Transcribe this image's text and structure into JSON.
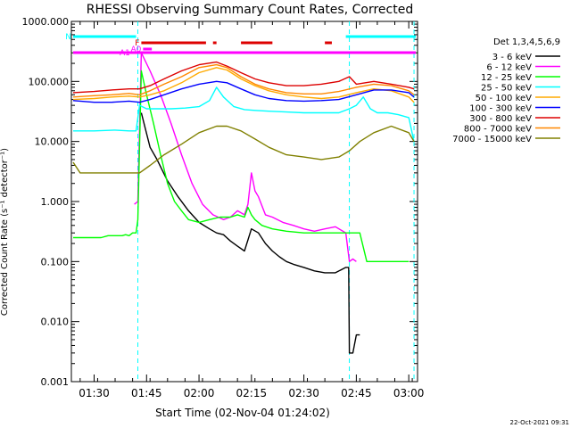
{
  "chart_data": {
    "type": "line",
    "title": "RHESSI Observing Summary Count Rates, Corrected",
    "ylabel": "Corrected Count Rate (s⁻¹ detector⁻¹)",
    "xlabel": "Start Time (02-Nov-04 01:24:02)",
    "footer_date": "22-Oct-2021 09:31",
    "y_scale": "log",
    "ylim": [
      0.001,
      1000
    ],
    "xlim_min": [
      84,
      182
    ],
    "y_ticks": [
      "1000.000",
      "100.000",
      "10.000",
      "1.000",
      "0.100",
      "0.010",
      "0.001"
    ],
    "x_ticks": [
      {
        "label": "01:30",
        "min": 90
      },
      {
        "label": "01:45",
        "min": 105
      },
      {
        "label": "02:00",
        "min": 120
      },
      {
        "label": "02:15",
        "min": 135
      },
      {
        "label": "02:30",
        "min": 150
      },
      {
        "label": "02:45",
        "min": 165
      },
      {
        "label": "03:00",
        "min": 180
      }
    ],
    "legend": {
      "title": "Det 1,3,4,5,6,9",
      "entries": [
        {
          "label": "3 - 6 keV",
          "color": "#000000"
        },
        {
          "label": "6 - 12 keV",
          "color": "#ff00ff"
        },
        {
          "label": "12 - 25 keV",
          "color": "#00ff00"
        },
        {
          "label": "25 - 50 keV",
          "color": "#00ffff"
        },
        {
          "label": "50 - 100 keV",
          "color": "#ffaa00"
        },
        {
          "label": "100 - 300 keV",
          "color": "#0000ff"
        },
        {
          "label": "300 - 800 keV",
          "color": "#dd0000"
        },
        {
          "label": "800 - 7000 keV",
          "color": "#ff8800"
        },
        {
          "label": "7000 - 15000 keV",
          "color": "#808000"
        }
      ]
    },
    "flags": [
      {
        "label": "N",
        "color": "#00ffff",
        "segments": [
          [
            84,
            102
          ],
          [
            162,
            182
          ]
        ]
      },
      {
        "label": "F",
        "color": "#dd0000",
        "segments": [
          [
            103.5,
            122
          ],
          [
            124,
            125
          ],
          [
            132,
            141
          ],
          [
            156,
            158
          ]
        ]
      },
      {
        "label": "A0",
        "color": "#ff00ff",
        "segments": [
          [
            104,
            106.5
          ]
        ]
      },
      {
        "label": "A1",
        "color": "#ff00ff",
        "segments": [
          [
            84,
            182
          ]
        ]
      }
    ],
    "vlines_min": [
      102.5,
      163,
      181.5
    ],
    "series": [
      {
        "label": "3 - 6 keV",
        "color": "#000000",
        "x": [
          84,
          101.5,
          102.5,
          103.5,
          106,
          108,
          111,
          114,
          117,
          120,
          123,
          125,
          127,
          129,
          131,
          133,
          135,
          137,
          139,
          141,
          143,
          145,
          147,
          150,
          153,
          156,
          159,
          162,
          162.8,
          163,
          164,
          165,
          166
        ],
        "y": [
          null,
          null,
          null,
          30,
          8,
          5,
          2.2,
          1.2,
          0.7,
          0.45,
          0.35,
          0.3,
          0.28,
          0.22,
          0.18,
          0.15,
          0.35,
          0.3,
          0.2,
          0.15,
          0.12,
          0.1,
          0.09,
          0.08,
          0.07,
          0.065,
          0.065,
          0.08,
          0.08,
          0.003,
          0.003,
          0.006,
          0.006
        ]
      },
      {
        "label": "6 - 12 keV",
        "color": "#ff00ff",
        "x": [
          84,
          101,
          101.5,
          102.5,
          103.5,
          106,
          109,
          112,
          115,
          118,
          121,
          124,
          127,
          129,
          131,
          133,
          134,
          135,
          136,
          137,
          139,
          141,
          144,
          147,
          150,
          153,
          156,
          159,
          162,
          163,
          164,
          165
        ],
        "y": [
          null,
          null,
          0.9,
          1,
          300,
          150,
          60,
          20,
          6,
          2,
          0.9,
          0.6,
          0.5,
          0.55,
          0.7,
          0.6,
          0.9,
          3,
          1.5,
          1.2,
          0.6,
          0.55,
          0.45,
          0.4,
          0.35,
          0.32,
          0.35,
          0.38,
          0.3,
          0.1,
          0.11,
          0.1
        ]
      },
      {
        "label": "12 - 25 keV",
        "color": "#00ff00",
        "x": [
          84,
          88,
          90,
          92,
          94,
          96,
          98,
          99,
          100,
          101,
          102,
          102.5,
          103.5,
          105,
          107,
          109,
          111,
          113,
          115,
          117,
          120,
          123,
          126,
          129,
          131,
          133,
          134,
          135,
          136,
          138,
          141,
          145,
          150,
          155,
          160,
          164,
          166,
          168,
          175,
          180
        ],
        "y": [
          0.25,
          0.25,
          0.25,
          0.25,
          0.27,
          0.27,
          0.27,
          0.28,
          0.27,
          0.3,
          0.3,
          0.5,
          150,
          60,
          20,
          6,
          2,
          1,
          0.7,
          0.5,
          0.45,
          0.5,
          0.55,
          0.55,
          0.6,
          0.55,
          0.8,
          0.6,
          0.5,
          0.4,
          0.35,
          0.32,
          0.3,
          0.3,
          0.3,
          0.3,
          0.3,
          0.1,
          0.1,
          0.1
        ]
      },
      {
        "label": "25 - 50 keV",
        "color": "#00ffff",
        "x": [
          84,
          90,
          96,
          100,
          102,
          103,
          105,
          108,
          112,
          116,
          120,
          123,
          125,
          127,
          130,
          133,
          136,
          140,
          145,
          150,
          155,
          160,
          163,
          165,
          167,
          169,
          171,
          174,
          177,
          180,
          181.5
        ],
        "y": [
          15,
          15,
          15.5,
          15,
          15,
          40,
          35,
          35,
          35,
          36,
          38,
          48,
          80,
          55,
          38,
          34,
          33,
          32,
          31,
          30,
          30,
          30,
          35,
          40,
          55,
          35,
          30,
          30,
          28,
          25,
          10
        ]
      },
      {
        "label": "50 - 100 keV",
        "color": "#ffaa00",
        "x": [
          84,
          90,
          95,
          100,
          103,
          106,
          110,
          115,
          120,
          125,
          128,
          132,
          136,
          140,
          145,
          150,
          155,
          160,
          165,
          170,
          175,
          180,
          181.5
        ],
        "y": [
          50,
          52,
          55,
          57,
          55,
          60,
          70,
          95,
          140,
          170,
          155,
          110,
          85,
          70,
          60,
          55,
          52,
          55,
          65,
          75,
          70,
          55,
          45
        ]
      },
      {
        "label": "100 - 300 keV",
        "color": "#0000ff",
        "x": [
          84,
          90,
          95,
          100,
          103,
          106,
          110,
          115,
          120,
          125,
          128,
          132,
          136,
          140,
          145,
          150,
          155,
          160,
          165,
          170,
          175,
          180,
          181.5
        ],
        "y": [
          48,
          45,
          45,
          47,
          45,
          50,
          60,
          75,
          90,
          100,
          95,
          75,
          60,
          52,
          48,
          47,
          48,
          50,
          60,
          72,
          72,
          65,
          55
        ]
      },
      {
        "label": "300 - 800 keV",
        "color": "#dd0000",
        "x": [
          84,
          90,
          95,
          100,
          103,
          106,
          110,
          115,
          120,
          125,
          128,
          132,
          136,
          140,
          145,
          150,
          155,
          160,
          163,
          165,
          170,
          175,
          180,
          181.5
        ],
        "y": [
          65,
          68,
          72,
          75,
          75,
          85,
          110,
          150,
          190,
          210,
          180,
          140,
          110,
          95,
          85,
          85,
          90,
          100,
          120,
          90,
          100,
          90,
          80,
          75
        ]
      },
      {
        "label": "800 - 7000 keV",
        "color": "#ff8800",
        "x": [
          84,
          90,
          95,
          100,
          103,
          106,
          110,
          115,
          120,
          125,
          128,
          132,
          136,
          140,
          145,
          150,
          155,
          160,
          165,
          170,
          175,
          180,
          181.5
        ],
        "y": [
          55,
          58,
          60,
          63,
          60,
          70,
          90,
          120,
          170,
          190,
          170,
          120,
          90,
          75,
          65,
          62,
          62,
          68,
          80,
          90,
          85,
          70,
          60
        ]
      },
      {
        "label": "7000 - 15000 keV",
        "color": "#808000",
        "x": [
          84,
          86,
          90,
          95,
          100,
          103,
          106,
          110,
          115,
          120,
          125,
          128,
          132,
          136,
          140,
          145,
          150,
          155,
          160,
          163,
          166,
          170,
          175,
          180,
          181.5
        ],
        "y": [
          4.5,
          3,
          3,
          3,
          3,
          3,
          4,
          6,
          9,
          14,
          18,
          18,
          15,
          11,
          8,
          6,
          5.5,
          5,
          5.5,
          7,
          10,
          14,
          18,
          14,
          10
        ]
      }
    ]
  }
}
